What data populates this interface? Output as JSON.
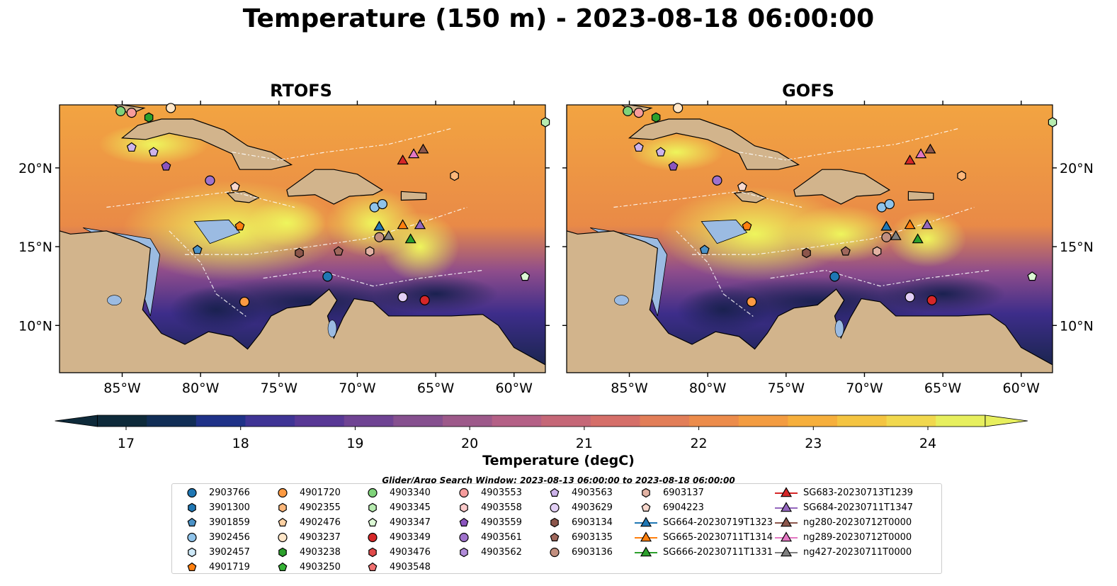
{
  "title": "Temperature (150 m) - 2023-08-18 06:00:00",
  "panels": [
    {
      "title": "RTOFS"
    },
    {
      "title": "GOFS"
    }
  ],
  "axes": {
    "lon_ticks": [
      "85°W",
      "80°W",
      "75°W",
      "70°W",
      "65°W",
      "60°W"
    ],
    "lat_ticks": [
      "20°N",
      "15°N",
      "10°N"
    ],
    "lon_values": [
      -85,
      -80,
      -75,
      -70,
      -65,
      -60
    ],
    "lat_values": [
      20,
      15,
      10
    ],
    "lon_range": [
      -89,
      -58
    ],
    "lat_range": [
      7,
      24
    ]
  },
  "colorbar": {
    "label": "Temperature (degC)",
    "ticks": [
      "17",
      "18",
      "19",
      "20",
      "21",
      "22",
      "23",
      "24"
    ],
    "tick_values": [
      17,
      18,
      19,
      20,
      21,
      22,
      23,
      24
    ],
    "range": [
      16.75,
      24.5
    ],
    "colors": [
      "#0e2a3a",
      "#112e56",
      "#1f3288",
      "#3f3495",
      "#583895",
      "#6f4393",
      "#86508f",
      "#9d598a",
      "#b46086",
      "#c56777",
      "#d56f69",
      "#e27e58",
      "#ec8c4b",
      "#f39c41",
      "#f6af3c",
      "#f4c441",
      "#f1d84e",
      "#e7ef5e"
    ]
  },
  "window_text": "Glider/Argo Search Window: 2023-08-13 06:00:00 to 2023-08-18 06:00:00",
  "legend": {
    "items": [
      {
        "label": "2903766",
        "marker": "circle",
        "color": "#1f77b4"
      },
      {
        "label": "3901300",
        "marker": "hexagon",
        "color": "#1f77b4"
      },
      {
        "label": "3901859",
        "marker": "pentagon",
        "color": "#4b92c7"
      },
      {
        "label": "3902456",
        "marker": "circle",
        "color": "#8fc3ea"
      },
      {
        "label": "3902457",
        "marker": "hexagon",
        "color": "#cde8f7"
      },
      {
        "label": "4901719",
        "marker": "pentagon",
        "color": "#ff7f0e"
      },
      {
        "label": "4901720",
        "marker": "circle",
        "color": "#fd9a42"
      },
      {
        "label": "4902355",
        "marker": "hexagon",
        "color": "#fdb77a"
      },
      {
        "label": "4902476",
        "marker": "pentagon",
        "color": "#fdd1a3"
      },
      {
        "label": "4903237",
        "marker": "circle",
        "color": "#ffe6c8"
      },
      {
        "label": "4903238",
        "marker": "hexagon",
        "color": "#2ca02c"
      },
      {
        "label": "4903250",
        "marker": "pentagon",
        "color": "#35b235"
      },
      {
        "label": "4903340",
        "marker": "circle",
        "color": "#7fd37a"
      },
      {
        "label": "4903345",
        "marker": "hexagon",
        "color": "#b7ecb0"
      },
      {
        "label": "4903347",
        "marker": "pentagon",
        "color": "#dcf8d5"
      },
      {
        "label": "4903349",
        "marker": "circle",
        "color": "#d62728"
      },
      {
        "label": "4903476",
        "marker": "hexagon",
        "color": "#e04a4a"
      },
      {
        "label": "4903548",
        "marker": "pentagon",
        "color": "#f07070"
      },
      {
        "label": "4903553",
        "marker": "circle",
        "color": "#f79c9c"
      },
      {
        "label": "4903558",
        "marker": "hexagon",
        "color": "#fbcaca"
      },
      {
        "label": "4903559",
        "marker": "pentagon",
        "color": "#8b55bf"
      },
      {
        "label": "4903561",
        "marker": "circle",
        "color": "#9f72cc"
      },
      {
        "label": "4903562",
        "marker": "hexagon",
        "color": "#b08bd8"
      },
      {
        "label": "4903563",
        "marker": "pentagon",
        "color": "#cdb3ea"
      },
      {
        "label": "4903629",
        "marker": "circle",
        "color": "#e2cff5"
      },
      {
        "label": "6903134",
        "marker": "hexagon",
        "color": "#8c564b"
      },
      {
        "label": "6903135",
        "marker": "pentagon",
        "color": "#a0685c"
      },
      {
        "label": "6903136",
        "marker": "circle",
        "color": "#c28f7f"
      },
      {
        "label": "6903137",
        "marker": "hexagon",
        "color": "#e2b2a3"
      },
      {
        "label": "6904223",
        "marker": "pentagon",
        "color": "#f7d8cd"
      },
      {
        "label": "SG664-20230719T1323",
        "marker": "triangle-line",
        "color": "#1f77b4"
      },
      {
        "label": "SG665-20230711T1314",
        "marker": "triangle-line",
        "color": "#ff7f0e"
      },
      {
        "label": "SG666-20230711T1331",
        "marker": "triangle-line",
        "color": "#2ca02c"
      },
      {
        "label": "SG683-20230713T1239",
        "marker": "triangle-line",
        "color": "#d62728"
      },
      {
        "label": "SG684-20230711T1347",
        "marker": "triangle-line",
        "color": "#9467bd"
      },
      {
        "label": "ng280-20230712T0000",
        "marker": "triangle-line",
        "color": "#8c564b"
      },
      {
        "label": "ng289-20230712T0000",
        "marker": "triangle-line",
        "color": "#e377c2"
      },
      {
        "label": "ng427-20230711T0000",
        "marker": "triangle-line",
        "color": "#7f7f7f"
      }
    ]
  },
  "observations": [
    {
      "label": "4903340",
      "marker": "circle",
      "color": "#7fd37a",
      "lon": -85.1,
      "lat": 23.6
    },
    {
      "label": "4903553",
      "marker": "circle",
      "color": "#f79c9c",
      "lon": -84.4,
      "lat": 23.5
    },
    {
      "label": "4903238",
      "marker": "hexagon",
      "color": "#2ca02c",
      "lon": -83.3,
      "lat": 23.2
    },
    {
      "label": "4903237",
      "marker": "circle",
      "color": "#ffe6c8",
      "lon": -81.9,
      "lat": 23.8
    },
    {
      "label": "4903563",
      "marker": "pentagon",
      "color": "#cdb3ea",
      "lon": -84.4,
      "lat": 21.3
    },
    {
      "label": "4903563",
      "marker": "pentagon",
      "color": "#cdb3ea",
      "lon": -83.0,
      "lat": 21.0
    },
    {
      "label": "4903559",
      "marker": "pentagon",
      "color": "#8b55bf",
      "lon": -82.2,
      "lat": 20.1
    },
    {
      "label": "4903561",
      "marker": "circle",
      "color": "#9f72cc",
      "lon": -79.4,
      "lat": 19.2
    },
    {
      "label": "6904223",
      "marker": "pentagon",
      "color": "#f7d8cd",
      "lon": -77.8,
      "lat": 18.8
    },
    {
      "label": "4901719",
      "marker": "pentagon",
      "color": "#ff7f0e",
      "lon": -77.5,
      "lat": 16.3
    },
    {
      "label": "3901859",
      "marker": "pentagon",
      "color": "#4b92c7",
      "lon": -80.2,
      "lat": 14.8
    },
    {
      "label": "6903134",
      "marker": "hexagon",
      "color": "#8c564b",
      "lon": -73.7,
      "lat": 14.6
    },
    {
      "label": "6903135",
      "marker": "pentagon",
      "color": "#a0685c",
      "lon": -71.2,
      "lat": 14.7
    },
    {
      "label": "6903137",
      "marker": "hexagon",
      "color": "#e2b2a3",
      "lon": -69.2,
      "lat": 14.7
    },
    {
      "label": "6903136",
      "marker": "circle",
      "color": "#c28f7f",
      "lon": -68.6,
      "lat": 15.6
    },
    {
      "label": "3902456",
      "marker": "circle",
      "color": "#8fc3ea",
      "lon": -68.9,
      "lat": 17.5
    },
    {
      "label": "3902456",
      "marker": "circle",
      "color": "#8fc3ea",
      "lon": -68.4,
      "lat": 17.7
    },
    {
      "label": "4902355",
      "marker": "hexagon",
      "color": "#fdb77a",
      "lon": -63.8,
      "lat": 19.5
    },
    {
      "label": "4903345",
      "marker": "hexagon",
      "color": "#b7ecb0",
      "lon": -58.0,
      "lat": 22.9
    },
    {
      "label": "2903766",
      "marker": "circle",
      "color": "#1f77b4",
      "lon": -71.9,
      "lat": 13.1
    },
    {
      "label": "4901720",
      "marker": "circle",
      "color": "#fd9a42",
      "lon": -77.2,
      "lat": 11.5
    },
    {
      "label": "4903629",
      "marker": "circle",
      "color": "#e2cff5",
      "lon": -67.1,
      "lat": 11.8
    },
    {
      "label": "4903349",
      "marker": "circle",
      "color": "#d62728",
      "lon": -65.7,
      "lat": 11.6
    },
    {
      "label": "4903347",
      "marker": "pentagon",
      "color": "#dcf8d5",
      "lon": -59.3,
      "lat": 13.1
    },
    {
      "label": "SG664-20230719T1323",
      "marker": "triangle",
      "color": "#1f77b4",
      "lon": -68.6,
      "lat": 16.3
    },
    {
      "label": "ng427-20230711T0000",
      "marker": "triangle",
      "color": "#7f7f7f",
      "lon": -68.0,
      "lat": 15.7
    },
    {
      "label": "SG665-20230711T1314",
      "marker": "triangle",
      "color": "#ff7f0e",
      "lon": -67.1,
      "lat": 16.4
    },
    {
      "label": "SG666-20230711T1331",
      "marker": "triangle",
      "color": "#2ca02c",
      "lon": -66.6,
      "lat": 15.5
    },
    {
      "label": "SG684-20230711T1347",
      "marker": "triangle",
      "color": "#9467bd",
      "lon": -66.0,
      "lat": 16.4
    },
    {
      "label": "SG683-20230713T1239",
      "marker": "triangle",
      "color": "#d62728",
      "lon": -67.1,
      "lat": 20.5
    },
    {
      "label": "ng289-20230712T0000",
      "marker": "triangle",
      "color": "#e377c2",
      "lon": -66.4,
      "lat": 20.9
    },
    {
      "label": "ng280-20230712T0000",
      "marker": "triangle",
      "color": "#8c564b",
      "lon": -65.8,
      "lat": 21.2
    }
  ]
}
